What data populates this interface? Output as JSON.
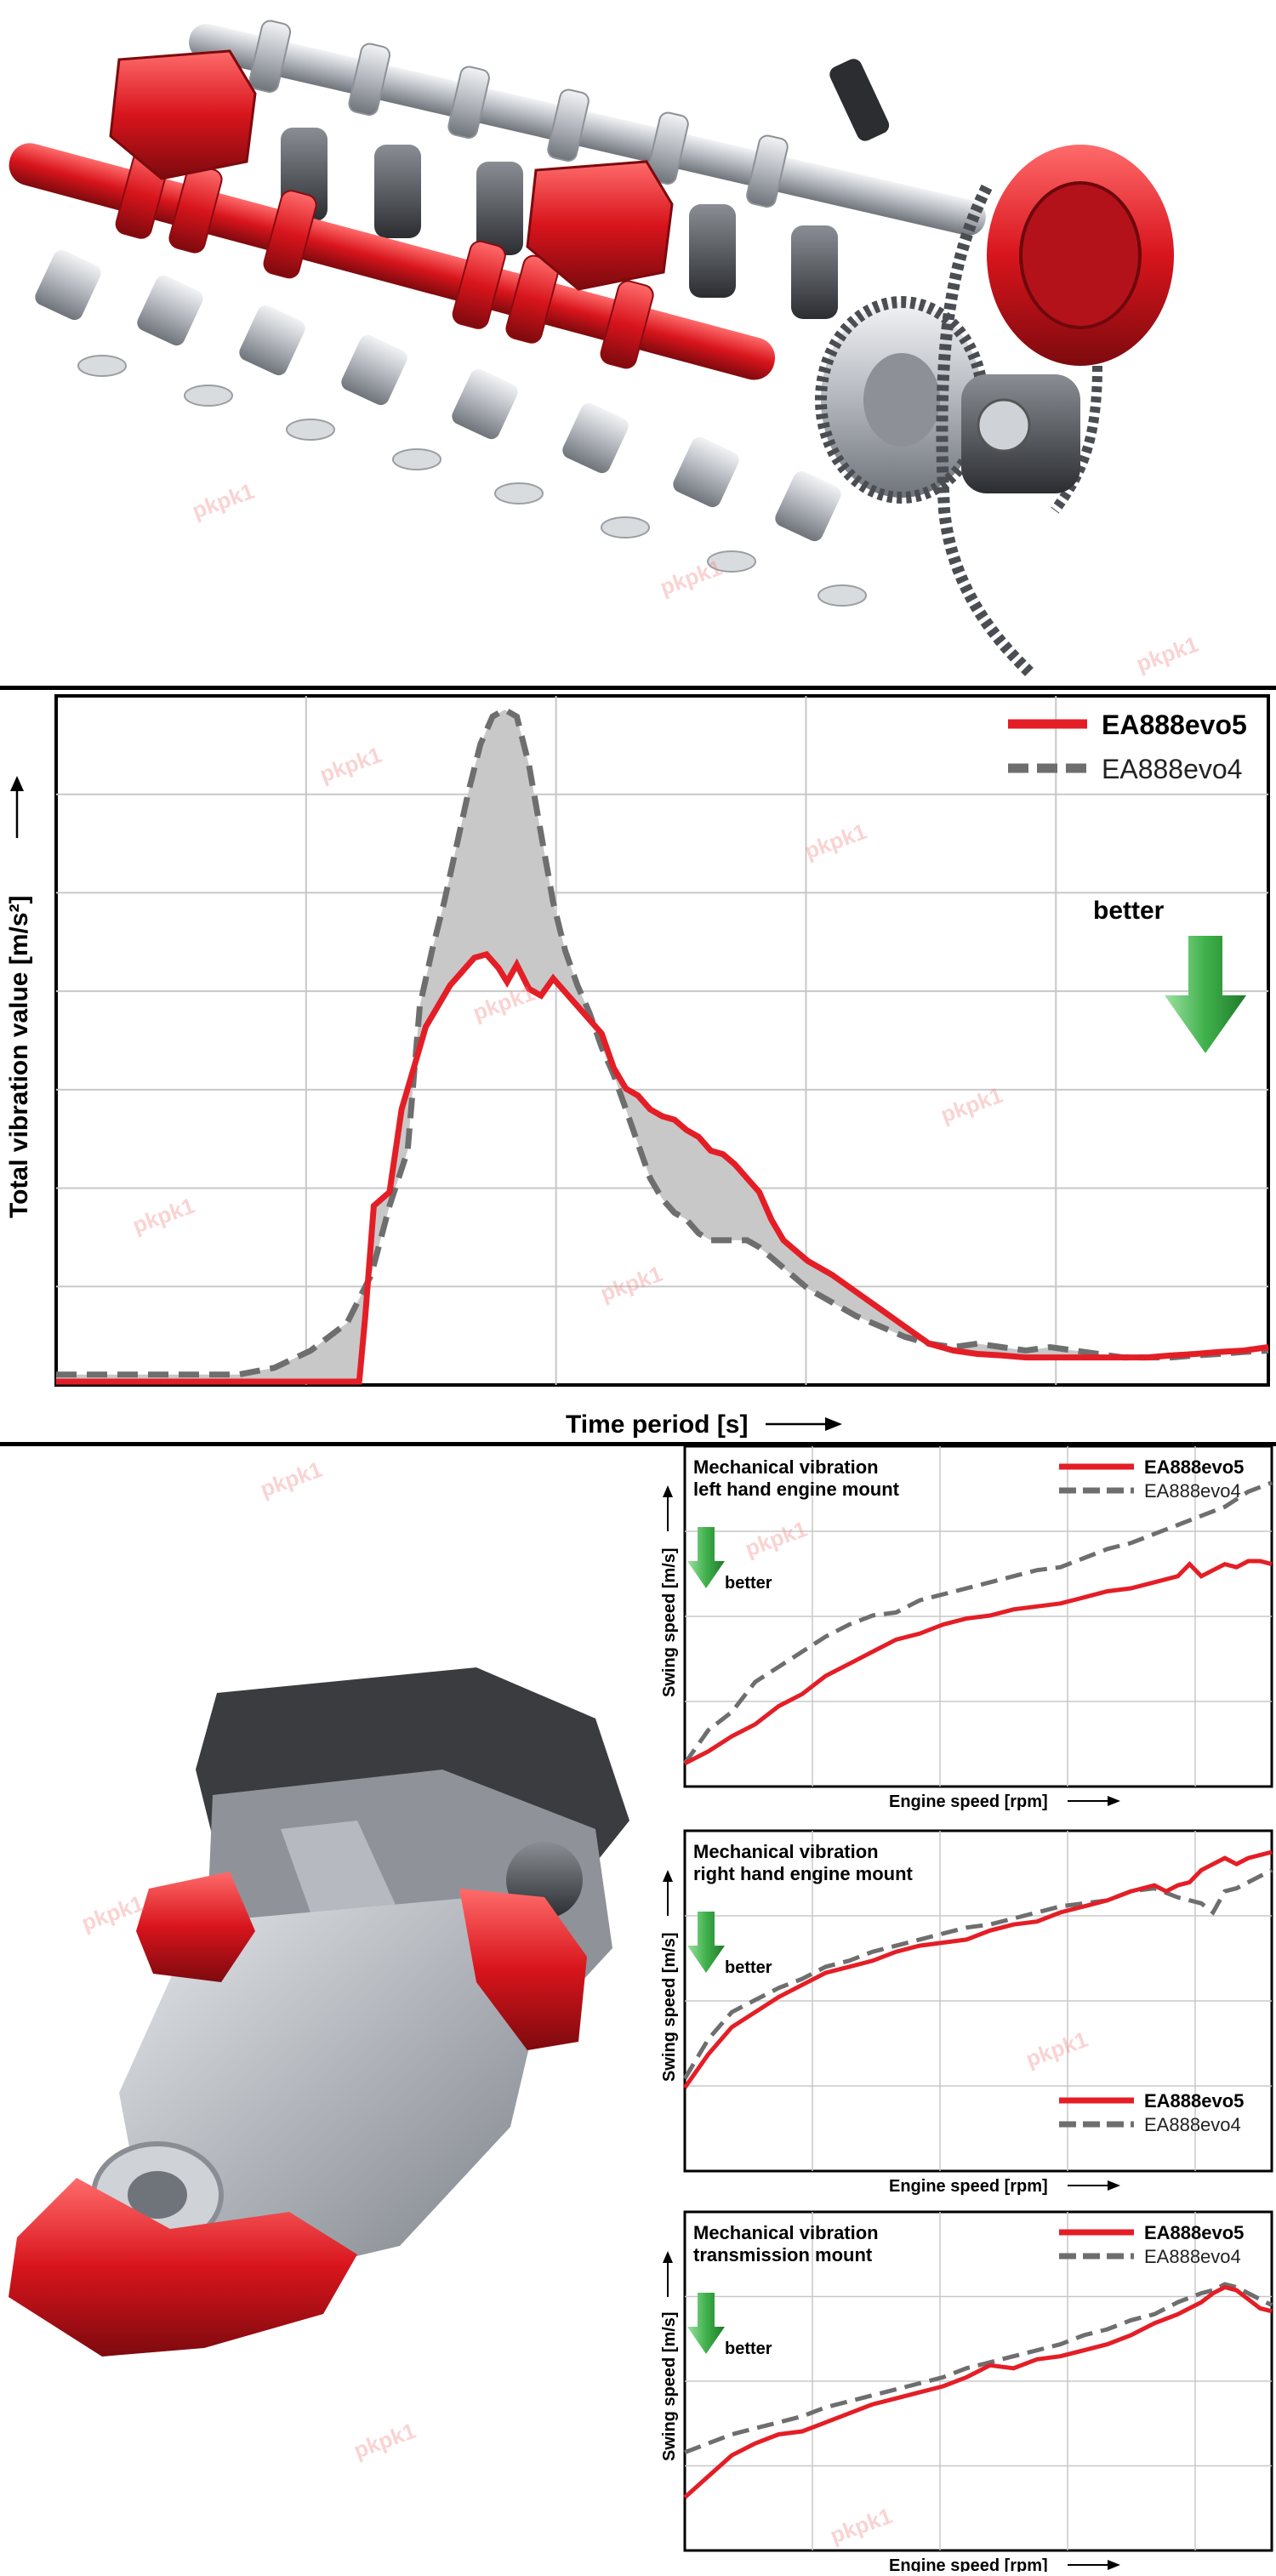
{
  "colors": {
    "evo5": "#e41e26",
    "evo4": "#6e6e6e",
    "engine_red": "#d8141c",
    "metal": "#b8bcc2",
    "grid": "#c8c8c8",
    "arrow_green": "#3fb14b",
    "fill_gray": "#c8c8c8"
  },
  "main_chart": {
    "ylabel": "Total vibration value [m/s²]",
    "xlabel": "Time period [s]",
    "better_label": "better",
    "legend": [
      "EA888evo5",
      "EA888evo4"
    ]
  },
  "chart_data": [
    {
      "type": "line",
      "title": "",
      "xlabel": "Time period [s]",
      "ylabel": "Total vibration value [m/s²]",
      "xlim": [
        0,
        100
      ],
      "ylim": [
        0,
        100
      ],
      "grid": true,
      "legend_position": "top-right",
      "series": [
        {
          "name": "EA888evo5",
          "x": [
            0,
            25,
            25.5,
            26.2,
            27.5,
            28.5,
            29.5,
            30.5,
            31.5,
            32.5,
            33.5,
            34.5,
            35.5,
            36.5,
            37.2,
            38,
            39,
            40,
            41,
            42,
            43,
            44,
            45,
            46,
            47,
            48,
            49,
            50,
            51,
            52,
            53,
            54,
            55,
            56,
            57,
            58,
            59,
            60,
            62,
            64,
            66,
            68,
            70,
            72,
            74,
            76,
            78,
            80,
            82,
            84,
            86,
            88,
            90,
            92,
            94,
            96,
            98,
            100
          ],
          "y": [
            0.5,
            0.5,
            10,
            26,
            28,
            40,
            46,
            52,
            55,
            58,
            60,
            62,
            62.5,
            60.5,
            58.5,
            61,
            57.5,
            56.5,
            59,
            57,
            55,
            53,
            51,
            46,
            43,
            42,
            40,
            39,
            38.5,
            37,
            36,
            34,
            33.5,
            32,
            30,
            28,
            24,
            21,
            18,
            16,
            13.5,
            11,
            8.5,
            6,
            5,
            4.5,
            4.3,
            4,
            4,
            4,
            4,
            4,
            4,
            4.3,
            4.5,
            4.8,
            5,
            5.5
          ]
        },
        {
          "name": "EA888evo4",
          "x": [
            0,
            15,
            18,
            21,
            24,
            26,
            27.5,
            29,
            30,
            31,
            32,
            33,
            34,
            35,
            36,
            37,
            38,
            39,
            40,
            41,
            42,
            43,
            44,
            45,
            46,
            47,
            48,
            49,
            50,
            51,
            52,
            53,
            54,
            55,
            56,
            57,
            58,
            60,
            62,
            64,
            66,
            68,
            70,
            72,
            74,
            76,
            78,
            80,
            82,
            84,
            86,
            88,
            90,
            92,
            94,
            96,
            98,
            100
          ],
          "y": [
            1.5,
            1.5,
            2.5,
            5,
            9,
            16,
            26,
            34,
            55,
            63,
            70,
            78,
            86,
            93,
            97,
            98,
            97,
            90,
            80,
            70,
            63,
            58,
            54,
            49,
            45,
            40,
            35,
            30,
            27,
            25,
            24,
            22,
            21,
            21,
            21,
            21,
            20,
            17,
            14,
            12,
            10,
            8.5,
            7,
            6,
            5.5,
            6,
            5.5,
            5,
            5.5,
            5,
            4.5,
            4,
            4,
            4,
            4.3,
            4.5,
            4.8,
            5
          ]
        }
      ]
    },
    {
      "type": "line",
      "title": "Mechanical vibration left hand engine mount",
      "xlabel": "Engine speed [rpm]",
      "ylabel": "Swing speed [m/s]",
      "xlim": [
        0,
        100
      ],
      "ylim": [
        0,
        100
      ],
      "grid": true,
      "legend_position": "top-right",
      "series": [
        {
          "name": "EA888evo5",
          "x": [
            0,
            4,
            8,
            12,
            16,
            20,
            24,
            28,
            32,
            36,
            40,
            44,
            48,
            52,
            56,
            60,
            64,
            68,
            72,
            76,
            80,
            84,
            86,
            88,
            90,
            92,
            94,
            96,
            98,
            100
          ],
          "y": [
            2,
            6,
            11,
            15,
            21,
            25,
            31,
            35,
            39,
            43,
            45,
            48,
            50,
            51,
            53,
            54,
            55,
            57,
            59,
            60,
            62,
            64,
            68,
            64,
            66,
            68,
            67,
            69,
            69,
            68
          ]
        },
        {
          "name": "EA888evo4",
          "x": [
            0,
            4,
            8,
            12,
            16,
            20,
            24,
            28,
            32,
            36,
            40,
            44,
            48,
            52,
            56,
            60,
            64,
            68,
            72,
            76,
            80,
            84,
            88,
            92,
            96,
            100
          ],
          "y": [
            2,
            13,
            19,
            29,
            34,
            39,
            44,
            48,
            51,
            52,
            56,
            58,
            60,
            62,
            64,
            66,
            67,
            70,
            73,
            75,
            78,
            81,
            84,
            87,
            92,
            95
          ]
        }
      ]
    },
    {
      "type": "line",
      "title": "Mechanical vibration right hand engine mount",
      "xlabel": "Engine speed [rpm]",
      "ylabel": "Swing speed [m/s]",
      "xlim": [
        0,
        100
      ],
      "ylim": [
        0,
        100
      ],
      "grid": true,
      "legend_position": "bottom-right",
      "series": [
        {
          "name": "EA888evo5",
          "x": [
            0,
            4,
            8,
            12,
            16,
            20,
            24,
            28,
            32,
            36,
            40,
            44,
            48,
            52,
            56,
            60,
            64,
            68,
            72,
            76,
            80,
            82,
            84,
            86,
            88,
            90,
            92,
            94,
            96,
            98,
            100
          ],
          "y": [
            22,
            33,
            42,
            47,
            52,
            56,
            60,
            62,
            64,
            67,
            69,
            70,
            71,
            74,
            76,
            77,
            80,
            82,
            84,
            87,
            89,
            87,
            89,
            90,
            94,
            96,
            98,
            96,
            98,
            99,
            100
          ]
        },
        {
          "name": "EA888evo4",
          "x": [
            0,
            4,
            8,
            12,
            16,
            20,
            24,
            28,
            32,
            36,
            40,
            44,
            48,
            52,
            56,
            60,
            64,
            68,
            72,
            76,
            80,
            84,
            88,
            90,
            92,
            94,
            96,
            98,
            100
          ],
          "y": [
            25,
            38,
            47,
            51,
            55,
            58,
            62,
            64,
            67,
            69,
            71,
            73,
            75,
            76,
            78,
            80,
            82,
            83,
            84,
            87,
            88,
            85,
            83,
            80,
            87,
            88,
            90,
            92,
            94
          ]
        }
      ]
    },
    {
      "type": "line",
      "title": "Mechanical vibration transmission mount",
      "xlabel": "Engine speed [rpm]",
      "ylabel": "Swing speed [m/s]",
      "xlim": [
        0,
        100
      ],
      "ylim": [
        0,
        100
      ],
      "grid": true,
      "legend_position": "top-right",
      "series": [
        {
          "name": "EA888evo5",
          "x": [
            0,
            4,
            8,
            12,
            16,
            20,
            24,
            28,
            32,
            36,
            40,
            44,
            48,
            52,
            56,
            60,
            64,
            68,
            72,
            76,
            80,
            84,
            88,
            90,
            92,
            94,
            96,
            98,
            100
          ],
          "y": [
            12,
            19,
            26,
            30,
            33,
            34,
            37,
            40,
            43,
            45,
            47,
            49,
            52,
            56,
            55,
            58,
            59,
            61,
            63,
            66,
            70,
            73,
            77,
            80,
            82,
            81,
            78,
            75,
            74
          ]
        },
        {
          "name": "EA888evo4",
          "x": [
            0,
            4,
            8,
            12,
            16,
            20,
            24,
            28,
            32,
            36,
            40,
            44,
            48,
            52,
            56,
            60,
            64,
            68,
            72,
            76,
            80,
            84,
            88,
            90,
            92,
            94,
            96,
            98,
            100
          ],
          "y": [
            27,
            30,
            33,
            35,
            37,
            39,
            42,
            44,
            46,
            48,
            50,
            52,
            55,
            57,
            59,
            61,
            63,
            66,
            68,
            71,
            73,
            77,
            80,
            81,
            83,
            82,
            80,
            78,
            76
          ]
        }
      ]
    }
  ],
  "small_charts": [
    {
      "title_line1": "Mechanical vibration",
      "title_line2": "left hand engine mount",
      "ylabel": "Swing speed [m/s]",
      "xlabel": "Engine speed [rpm]",
      "better_label": "better",
      "legend": [
        "EA888evo5",
        "EA888evo4"
      ]
    },
    {
      "title_line1": "Mechanical vibration",
      "title_line2": "right hand engine mount",
      "ylabel": "Swing speed [m/s]",
      "xlabel": "Engine speed [rpm]",
      "better_label": "better",
      "legend": [
        "EA888evo5",
        "EA888evo4"
      ]
    },
    {
      "title_line1": "Mechanical vibration",
      "title_line2": "transmission mount",
      "ylabel": "Swing speed [m/s]",
      "xlabel": "Engine speed [rpm]",
      "better_label": "better",
      "legend": [
        "EA888evo5",
        "EA888evo4"
      ]
    }
  ],
  "watermark": "pkpk1"
}
